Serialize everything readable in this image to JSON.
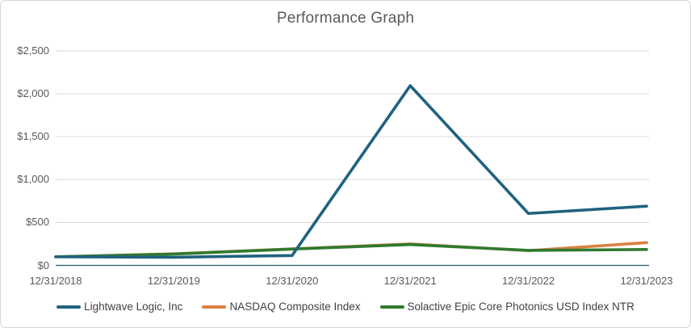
{
  "chart_data": {
    "type": "line",
    "title": "Performance Graph",
    "categories": [
      "12/31/2018",
      "12/31/2019",
      "12/31/2020",
      "12/31/2021",
      "12/31/2022",
      "12/31/2023"
    ],
    "series": [
      {
        "name": "Lightwave Logic, Inc",
        "color": "#20627f",
        "values": [
          100,
          95,
          115,
          2095,
          605,
          690
        ]
      },
      {
        "name": "NASDAQ Composite Index",
        "color": "#d98243",
        "values": [
          100,
          135,
          192,
          250,
          172,
          265
        ]
      },
      {
        "name": "Solactive Epic Core Photonics USD Index NTR",
        "color": "#2f7a2f",
        "values": [
          100,
          132,
          190,
          243,
          175,
          185
        ]
      }
    ],
    "ylim": [
      0,
      2500
    ],
    "yticks": [
      0,
      500,
      1000,
      1500,
      2000,
      2500
    ],
    "ytick_labels": [
      "$0",
      "$500",
      "$1,000",
      "$1,500",
      "$2,000",
      "$2,500"
    ],
    "xlabel": "",
    "ylabel": "",
    "grid": true,
    "gridline_color": "#d9d9d9",
    "axis_line_color": "#215968",
    "legend_position": "bottom",
    "title_color": "#595959",
    "tick_label_color": "#595959"
  }
}
